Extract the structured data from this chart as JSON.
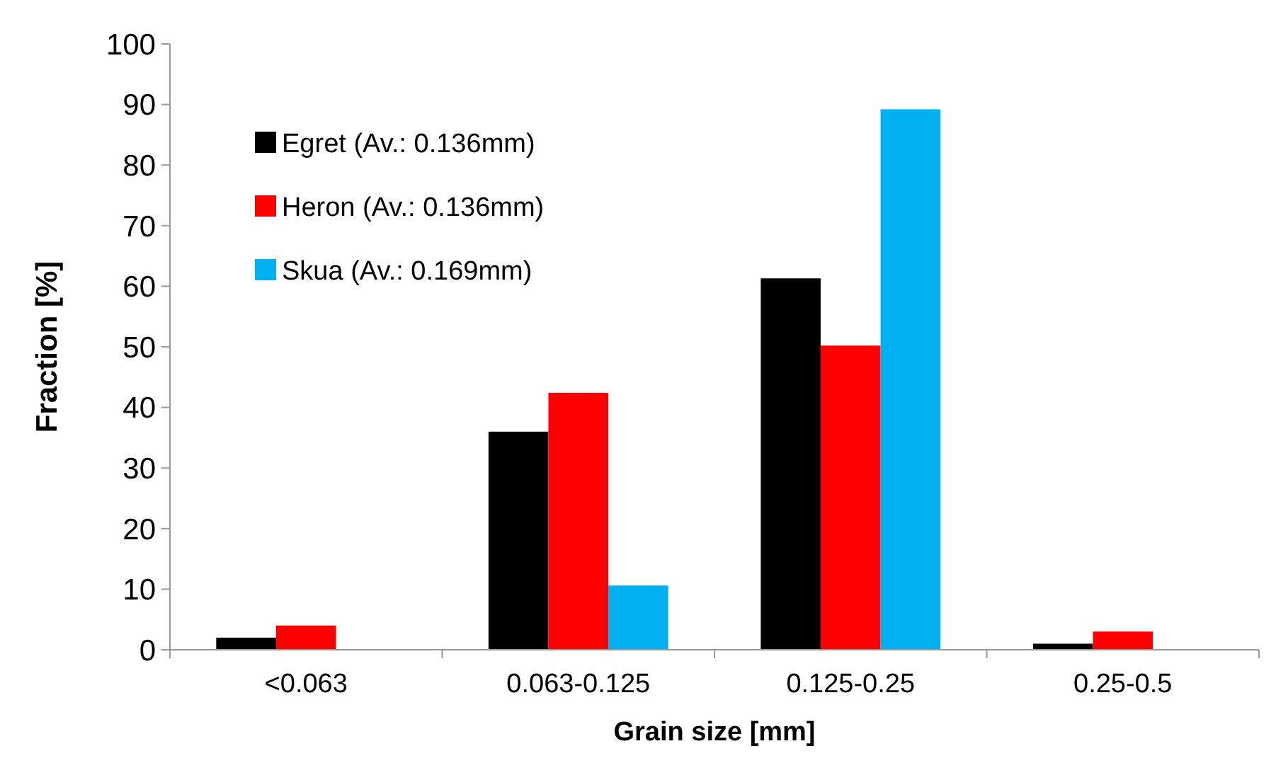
{
  "chart_data": {
    "type": "bar",
    "xlabel": "Grain size [mm]",
    "ylabel": "Fraction [%]",
    "categories": [
      "<0.063",
      "0.063-0.125",
      "0.125-0.25",
      "0.25-0.5"
    ],
    "series": [
      {
        "name": "Egret (Av.: 0.136mm)",
        "color": "#000000",
        "values": [
          2,
          36,
          61.3,
          1
        ]
      },
      {
        "name": "Heron (Av.: 0.136mm)",
        "color": "#ff0000",
        "values": [
          4,
          42.4,
          50.2,
          3
        ]
      },
      {
        "name": "Skua (Av.: 0.169mm)",
        "color": "#00b0f0",
        "values": [
          0,
          10.6,
          89.2,
          0
        ]
      }
    ],
    "ylim": [
      0,
      100
    ],
    "yticks": [
      0,
      10,
      20,
      30,
      40,
      50,
      60,
      70,
      80,
      90,
      100
    ],
    "grid": false,
    "legend": "top left"
  }
}
